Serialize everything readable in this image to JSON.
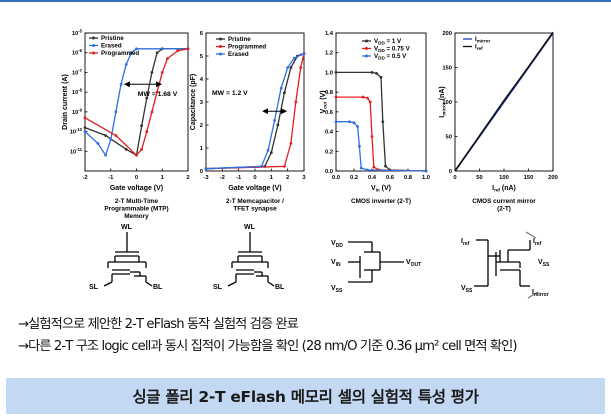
{
  "colors": {
    "pristine": "#333333",
    "erased": "#2f6fde",
    "programmed": "#e02020",
    "vdd1": "#333333",
    "vdd075": "#e02020",
    "vdd05": "#2f6fde",
    "banner_bg": "#c3d8f3"
  },
  "chart_data": [
    {
      "type": "line",
      "id": "mtp",
      "title": "",
      "xlabel": "Gate voltage (V)",
      "ylabel": "Drain current (A)",
      "ylim_log": [
        -12,
        -5
      ],
      "xlim": [
        -2,
        2
      ],
      "xticks": [
        "-2",
        "-1",
        "0",
        "1",
        "2"
      ],
      "yticks": [
        "10^-11",
        "10^-10",
        "10^-9",
        "10^-8",
        "10^-7",
        "10^-6",
        "10^-5"
      ],
      "legend": [
        "Pristine",
        "Erased",
        "Programmed"
      ],
      "annotation": "MW = 1.68 V",
      "series": [
        {
          "name": "Pristine",
          "x": [
            -2,
            -1.2,
            -0.4,
            0,
            0.2,
            0.4,
            0.6,
            0.8,
            1.0,
            2.0
          ],
          "log10y": [
            -9.8,
            -10.2,
            -10.9,
            -11.2,
            -9.7,
            -8.3,
            -7,
            -6.0,
            -5.8,
            -5.8
          ]
        },
        {
          "name": "Erased",
          "x": [
            -2,
            -1.5,
            -1.2,
            -1.0,
            -0.8,
            -0.6,
            -0.4,
            -0.2,
            0,
            2.0
          ],
          "log10y": [
            -10.0,
            -10.6,
            -11.2,
            -10.4,
            -9.0,
            -7.6,
            -6.6,
            -6.0,
            -5.8,
            -5.8
          ]
        },
        {
          "name": "Programmed",
          "x": [
            -2,
            -0.8,
            0,
            0.2,
            0.4,
            0.6,
            0.8,
            1.0,
            1.2,
            1.6,
            2.0
          ],
          "log10y": [
            -9.3,
            -10.2,
            -11.2,
            -10.9,
            -10.0,
            -9.0,
            -8.0,
            -7.0,
            -6.3,
            -5.9,
            -5.8
          ]
        }
      ],
      "caption": [
        "2-T Multi-Time",
        "Programmable (MTP)",
        "Memory"
      ]
    },
    {
      "type": "line",
      "id": "memcap",
      "title": "",
      "xlabel": "Gate voltage (V)",
      "ylabel": "Capacitance (pF)",
      "xlim": [
        -3,
        3
      ],
      "ylim": [
        0,
        6
      ],
      "xticks": [
        "-3",
        "-2",
        "-1",
        "0",
        "1",
        "2",
        "3"
      ],
      "yticks": [
        "0",
        "1",
        "2",
        "3",
        "4",
        "5",
        "6"
      ],
      "legend": [
        "Pristine",
        "Programmed",
        "Erased"
      ],
      "annotation": "MW = 1.2 V",
      "series": [
        {
          "name": "Pristine",
          "x": [
            -3,
            0.6,
            1.0,
            1.4,
            1.8,
            2.2,
            2.6,
            3.0
          ],
          "y": [
            0.1,
            0.2,
            0.8,
            2.0,
            3.4,
            4.5,
            5.0,
            5.1
          ]
        },
        {
          "name": "Programmed",
          "x": [
            -3,
            1.8,
            2.2,
            2.5,
            2.8,
            3.0
          ],
          "y": [
            0.1,
            0.2,
            1.2,
            3.0,
            4.5,
            5.1
          ]
        },
        {
          "name": "Erased",
          "x": [
            -3,
            0.4,
            0.8,
            1.2,
            1.6,
            2.0,
            2.4,
            2.8,
            3.0
          ],
          "y": [
            0.1,
            0.2,
            0.9,
            2.2,
            3.6,
            4.5,
            4.9,
            5.05,
            5.1
          ]
        }
      ],
      "caption": [
        "2-T Memcapacitor /",
        "TFET synapse"
      ]
    },
    {
      "type": "line",
      "id": "cmos",
      "title": "",
      "xlabel": "V_in (V)",
      "ylabel": "V_out (V)",
      "xlim": [
        0,
        1
      ],
      "ylim": [
        0,
        1.4
      ],
      "xticks": [
        "0.0",
        "0.2",
        "0.4",
        "0.6",
        "0.8",
        "1.0"
      ],
      "yticks": [
        "0.0",
        "0.2",
        "0.4",
        "0.6",
        "0.8",
        "1.0",
        "1.2",
        "1.4"
      ],
      "legend": [
        "V_DD = 1 V",
        "V_DD = 0.75 V",
        "V_DD = 0.5 V"
      ],
      "series": [
        {
          "name": "V_DD = 1 V",
          "x": [
            0,
            0.4,
            0.45,
            0.5,
            0.52,
            0.55,
            0.6,
            1.0
          ],
          "y": [
            1.0,
            1.0,
            0.99,
            0.95,
            0.5,
            0.05,
            0.01,
            0.0
          ]
        },
        {
          "name": "V_DD = 0.75 V",
          "x": [
            0,
            0.3,
            0.35,
            0.38,
            0.4,
            0.42,
            0.48,
            1.0
          ],
          "y": [
            0.75,
            0.75,
            0.74,
            0.7,
            0.35,
            0.04,
            0.01,
            0.0
          ]
        },
        {
          "name": "V_DD = 0.5 V",
          "x": [
            0,
            0.15,
            0.2,
            0.24,
            0.26,
            0.28,
            0.35,
            1.0
          ],
          "y": [
            0.5,
            0.5,
            0.49,
            0.45,
            0.25,
            0.03,
            0.01,
            0.0
          ]
        }
      ],
      "caption": [
        "CMOS inverter (2-T)"
      ]
    },
    {
      "type": "line",
      "id": "mirror",
      "title": "",
      "xlabel": "I_ref (nA)",
      "ylabel": "I_mirror (nA)",
      "xlim": [
        0,
        200
      ],
      "ylim": [
        0,
        200
      ],
      "xticks": [
        "0",
        "50",
        "100",
        "150",
        "200"
      ],
      "yticks": [
        "0",
        "50",
        "100",
        "150",
        "200"
      ],
      "legend": [
        "I_mirror",
        "I_ref"
      ],
      "series": [
        {
          "name": "I_mirror",
          "x": [
            0,
            50,
            100,
            150,
            200
          ],
          "y": [
            0,
            50,
            100,
            150,
            200
          ]
        },
        {
          "name": "I_ref",
          "x": [
            0,
            50,
            100,
            150,
            200
          ],
          "y": [
            0,
            51,
            102,
            151,
            201
          ]
        }
      ],
      "caption": [
        "CMOS current mirror",
        "(2-T)"
      ]
    }
  ],
  "schematic_labels": {
    "wl": "WL",
    "sl": "SL",
    "bl": "BL",
    "vdd": "V",
    "vdd_sub": "DD",
    "vin": "V",
    "vin_sub": "IN",
    "vout": "V",
    "vout_sub": "OUT",
    "vss": "V",
    "vss_sub": "SS",
    "iref": "I",
    "iref_sub": "ref",
    "imirror": "I",
    "imirror_sub": "mirror"
  },
  "bullets": [
    "→실험적으로 제안한 2-T eFlash 동작 실험적 검증 완료",
    "→다른 2-T 구조 logic cell과 동시 집적이 가능함을 확인 (28 nm/O 기준 0.36 μm² cell 면적 확인)"
  ],
  "banner": "싱글 폴리 2-T eFlash 메모리 셀의 실험적 특성 평가"
}
